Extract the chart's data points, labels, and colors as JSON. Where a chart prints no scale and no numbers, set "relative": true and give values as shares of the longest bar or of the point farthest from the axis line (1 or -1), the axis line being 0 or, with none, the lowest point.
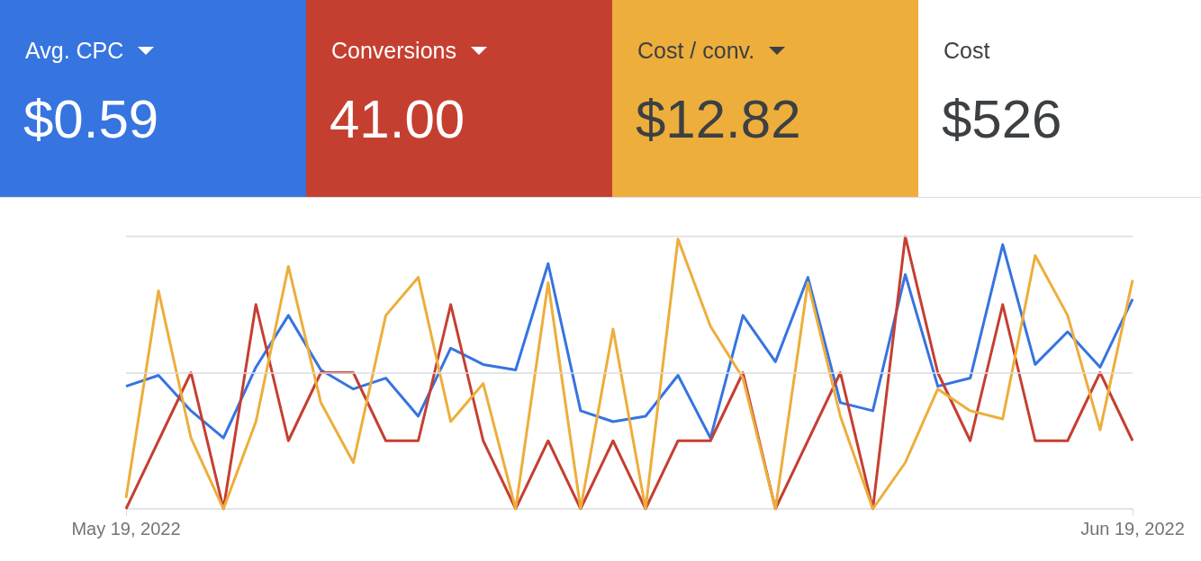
{
  "chart_data": {
    "type": "line",
    "relative": true,
    "ref_lines": [
      {
        "axis": "y",
        "value": 0.5,
        "color": "#dadce0"
      },
      {
        "axis": "y",
        "value": 1,
        "color": "#dadce0"
      }
    ],
    "legend": "top",
    "marker": "none",
    "line_style": "solid",
    "categories": [
      "May 19, 2022",
      null,
      null,
      null,
      null,
      null,
      null,
      null,
      null,
      null,
      null,
      null,
      null,
      null,
      null,
      null,
      null,
      null,
      null,
      null,
      null,
      null,
      null,
      null,
      null,
      null,
      null,
      null,
      null,
      null,
      null,
      "Jun 19, 2022"
    ],
    "series": [
      {
        "name": "Avg. CPC",
        "color": "#3674e0",
        "values": [
          0.45,
          0.49,
          0.36,
          0.26,
          0.52,
          0.71,
          0.51,
          0.44,
          0.48,
          0.34,
          0.59,
          0.53,
          0.51,
          0.9,
          0.36,
          0.32,
          0.34,
          0.49,
          0.26,
          0.71,
          0.54,
          0.85,
          0.39,
          0.36,
          0.86,
          0.45,
          0.48,
          0.97,
          0.53,
          0.65,
          0.52,
          0.77
        ]
      },
      {
        "name": "Conversions",
        "color": "#c53f31",
        "values": [
          0,
          0.25,
          0.5,
          0,
          0.75,
          0.25,
          0.5,
          0.5,
          0.25,
          0.25,
          0.75,
          0.25,
          0,
          0.25,
          0,
          0.25,
          0,
          0.25,
          0.25,
          0.5,
          0,
          0.25,
          0.5,
          0,
          1,
          0.5,
          0.25,
          0.75,
          0.25,
          0.25,
          0.5,
          0.25
        ]
      },
      {
        "name": "Cost / conv.",
        "color": "#edae3c",
        "values": [
          0.04,
          0.8,
          0.26,
          0,
          0.32,
          0.89,
          0.39,
          0.17,
          0.71,
          0.85,
          0.32,
          0.46,
          0,
          0.83,
          0,
          0.66,
          0,
          0.99,
          0.67,
          0.48,
          0,
          0.83,
          0.34,
          0,
          0.17,
          0.44,
          0.36,
          0.33,
          0.93,
          0.71,
          0.29,
          0.84
        ]
      }
    ],
    "annotations": [
      "$0.59",
      "41.00",
      "$12.82",
      "Cost",
      "$526"
    ]
  }
}
